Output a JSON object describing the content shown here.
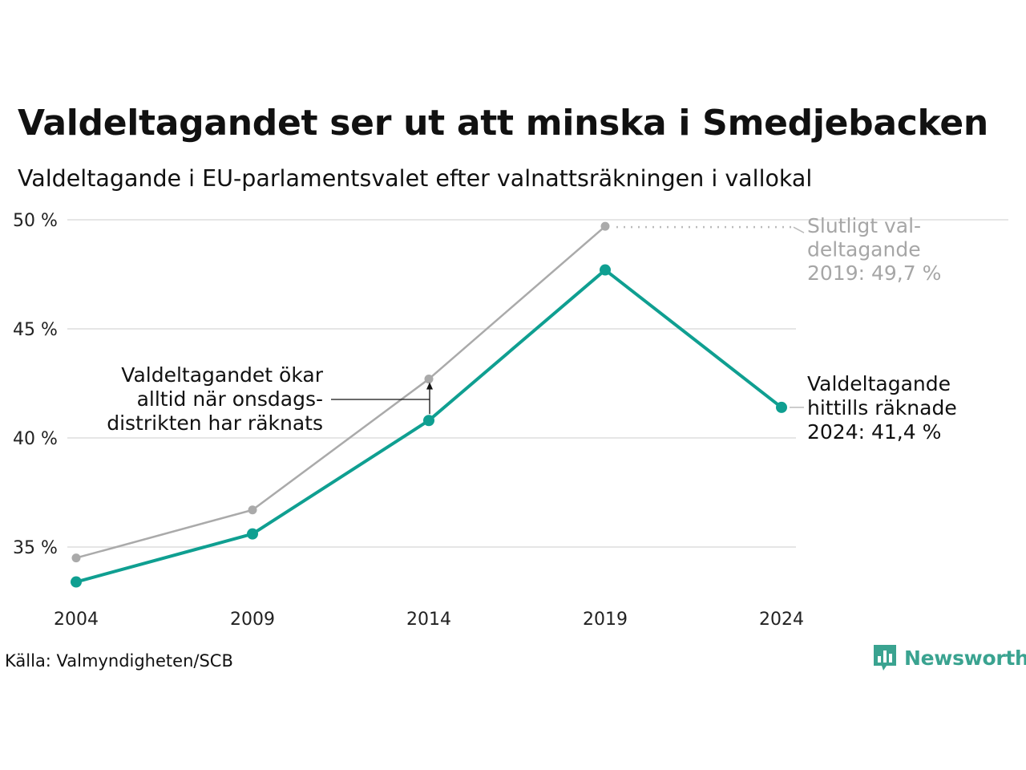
{
  "header": {
    "title": "Valdeltagandet ser ut att minska i Smedjebacken",
    "subtitle": "Valdeltagande i EU-parlamentsvalet efter valnattsräkningen i vallokal"
  },
  "chart_data": {
    "type": "line",
    "title": "Valdeltagandet ser ut att minska i Smedjebacken",
    "subtitle": "Valdeltagande i EU-parlamentsvalet efter valnattsräkningen i vallokal",
    "xlabel": "",
    "ylabel": "",
    "categories": [
      "2004",
      "2009",
      "2014",
      "2019",
      "2024"
    ],
    "y_ticks": [
      35,
      40,
      45,
      50
    ],
    "y_tick_labels": [
      "35 %",
      "40 %",
      "45 %",
      "50 %"
    ],
    "ylim": [
      33,
      50.5
    ],
    "grid": true,
    "series": [
      {
        "role": "final",
        "color": "#aaaaaa",
        "values": [
          34.5,
          36.7,
          42.7,
          49.7,
          null
        ]
      },
      {
        "role": "election_night",
        "color": "#0f9f91",
        "values": [
          33.4,
          35.6,
          40.8,
          47.7,
          41.4
        ]
      }
    ],
    "annotations": {
      "final_2019": [
        "Slutligt val-",
        "deltagande",
        "2019: 49,7 %"
      ],
      "night_2024": [
        "Valdeltagande",
        "hittills räknade",
        "2024: 41,4 %"
      ],
      "increase_note": [
        "Valdeltagandet ökar",
        "alltid när onsdags-",
        "distrikten har räknats"
      ]
    }
  },
  "footer": {
    "source": "Källa: Valmyndigheten/SCB",
    "brand": "Newsworthy"
  },
  "colors": {
    "teal": "#0f9f91",
    "grey": "#aaaaaa",
    "brand": "#3aa390",
    "grid": "#e6e6e6"
  }
}
